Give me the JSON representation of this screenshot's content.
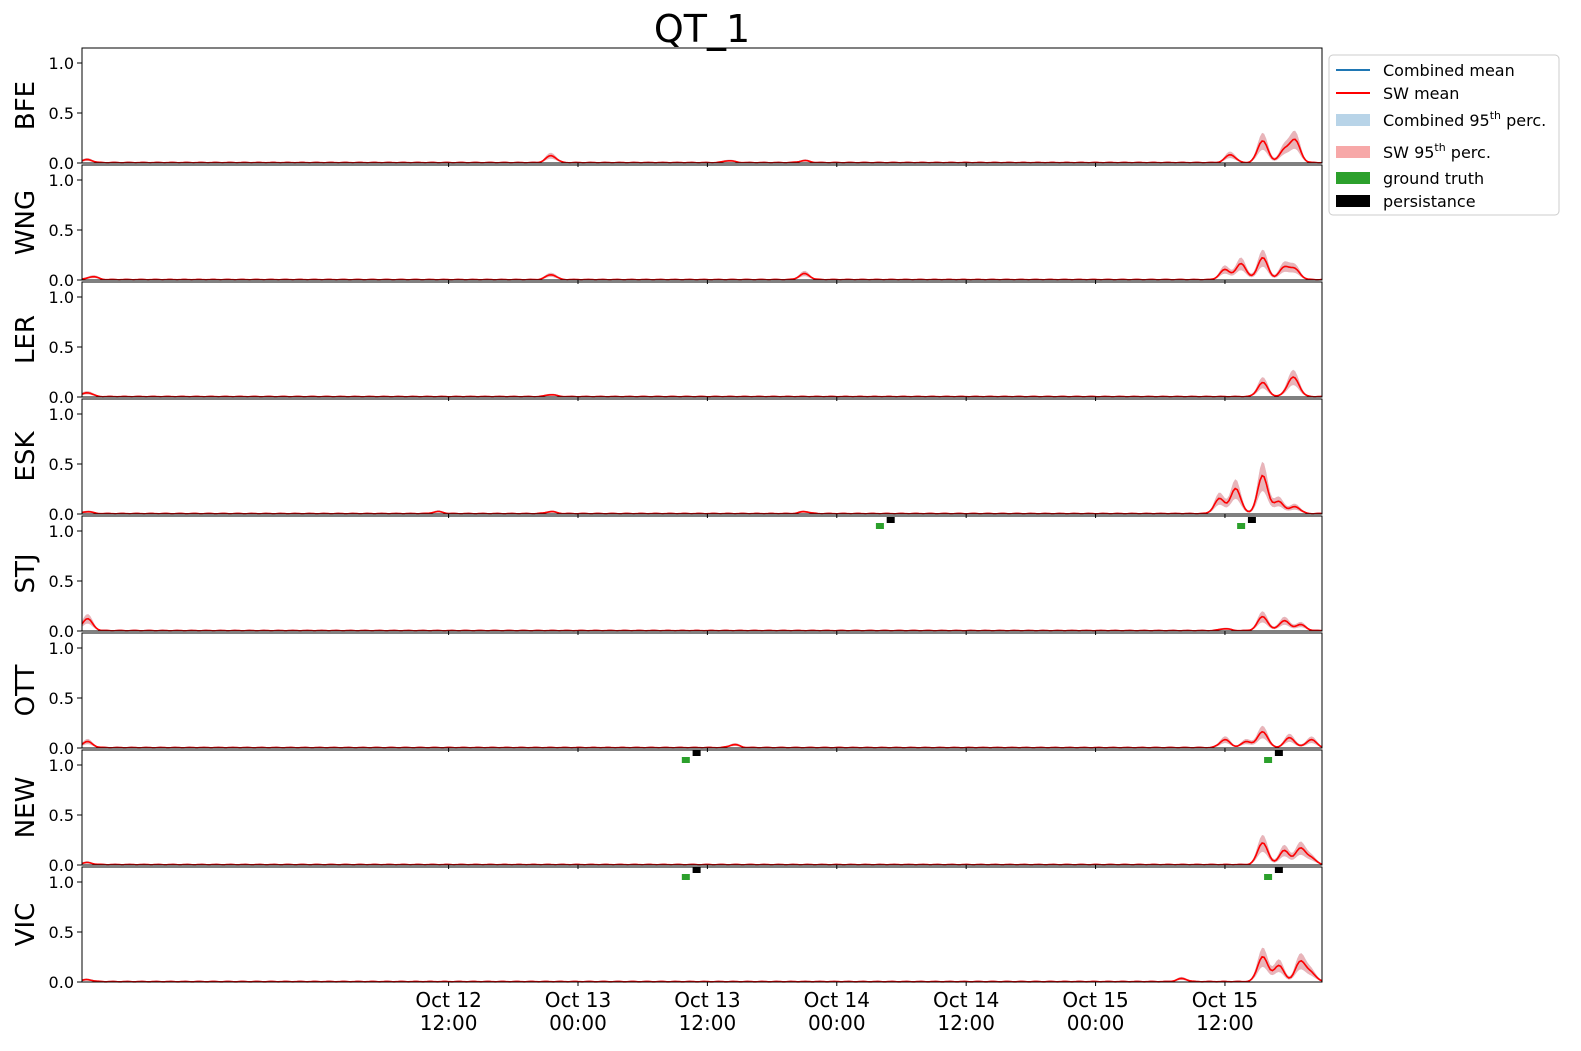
{
  "chart_data": {
    "type": "line",
    "title": "QT_1",
    "x_range": [
      "2021-10-11T02:00",
      "2021-10-15T21:00"
    ],
    "x_ticks": [
      {
        "t": "2021-10-12T12:00",
        "line1": "Oct 12",
        "line2": "12:00"
      },
      {
        "t": "2021-10-13T00:00",
        "line1": "Oct 13",
        "line2": "00:00"
      },
      {
        "t": "2021-10-13T12:00",
        "line1": "Oct 13",
        "line2": "12:00"
      },
      {
        "t": "2021-10-14T00:00",
        "line1": "Oct 14",
        "line2": "00:00"
      },
      {
        "t": "2021-10-14T12:00",
        "line1": "Oct 14",
        "line2": "12:00"
      },
      {
        "t": "2021-10-15T00:00",
        "line1": "Oct 15",
        "line2": "00:00"
      },
      {
        "t": "2021-10-15T12:00",
        "line1": "Oct 15",
        "line2": "12:00"
      }
    ],
    "ylim": [
      0,
      1.15
    ],
    "y_ticks": [
      {
        "v": 0.0,
        "label": "0.0"
      },
      {
        "v": 0.5,
        "label": "0.5"
      },
      {
        "v": 1.0,
        "label": "1.0"
      }
    ],
    "legend": {
      "position": "outside-top-right",
      "items": [
        {
          "label": "Combined mean",
          "kind": "line",
          "color": "#1f77b4"
        },
        {
          "label": "SW mean",
          "kind": "line",
          "color": "#ff0000"
        },
        {
          "label": "Combined 95",
          "sup": "th",
          "tail": " perc.",
          "kind": "patch",
          "color": "#b8d4e8"
        },
        {
          "label": "SW 95",
          "sup": "th",
          "tail": " perc.",
          "kind": "patch",
          "color": "#f7a8a8"
        },
        {
          "label": "ground truth",
          "kind": "patch",
          "color": "#2ca02c"
        },
        {
          "label": "persistance",
          "kind": "patch",
          "color": "#000000"
        }
      ]
    },
    "panels": [
      {
        "station": "BFE",
        "peaks": [
          [
            "2021-10-11T02:30",
            0.03
          ],
          [
            "2021-10-12T21:30",
            0.07
          ],
          [
            "2021-10-13T14:00",
            0.02
          ],
          [
            "2021-10-13T21:00",
            0.02
          ],
          [
            "2021-10-15T12:30",
            0.08
          ],
          [
            "2021-10-15T15:30",
            0.22
          ],
          [
            "2021-10-15T17:30",
            0.12
          ],
          [
            "2021-10-15T18:30",
            0.22
          ]
        ],
        "ground_truth": [],
        "persistance": []
      },
      {
        "station": "WNG",
        "peaks": [
          [
            "2021-10-11T03:00",
            0.03
          ],
          [
            "2021-10-12T21:30",
            0.05
          ],
          [
            "2021-10-13T21:00",
            0.06
          ],
          [
            "2021-10-15T12:00",
            0.1
          ],
          [
            "2021-10-15T13:30",
            0.16
          ],
          [
            "2021-10-15T15:30",
            0.22
          ],
          [
            "2021-10-15T17:30",
            0.12
          ],
          [
            "2021-10-15T18:30",
            0.1
          ]
        ],
        "ground_truth": [],
        "persistance": []
      },
      {
        "station": "LER",
        "peaks": [
          [
            "2021-10-11T02:30",
            0.04
          ],
          [
            "2021-10-12T21:30",
            0.02
          ],
          [
            "2021-10-15T15:30",
            0.14
          ],
          [
            "2021-10-15T18:00",
            0.08
          ],
          [
            "2021-10-15T18:30",
            0.14
          ]
        ],
        "ground_truth": [],
        "persistance": []
      },
      {
        "station": "ESK",
        "peaks": [
          [
            "2021-10-11T02:30",
            0.02
          ],
          [
            "2021-10-12T11:00",
            0.02
          ],
          [
            "2021-10-12T21:30",
            0.02
          ],
          [
            "2021-10-13T21:00",
            0.02
          ],
          [
            "2021-10-15T11:30",
            0.15
          ],
          [
            "2021-10-15T13:00",
            0.25
          ],
          [
            "2021-10-15T15:30",
            0.38
          ],
          [
            "2021-10-15T17:00",
            0.12
          ],
          [
            "2021-10-15T18:30",
            0.07
          ]
        ],
        "ground_truth": [],
        "persistance": []
      },
      {
        "station": "STJ",
        "peaks": [
          [
            "2021-10-11T02:30",
            0.12
          ],
          [
            "2021-10-15T12:00",
            0.02
          ],
          [
            "2021-10-15T15:30",
            0.14
          ],
          [
            "2021-10-15T17:30",
            0.1
          ],
          [
            "2021-10-15T19:00",
            0.06
          ]
        ],
        "ground_truth": [
          [
            "2021-10-14T04:00",
            1.05
          ],
          [
            "2021-10-15T13:30",
            1.05
          ]
        ],
        "persistance": [
          [
            "2021-10-14T05:00",
            1.11
          ],
          [
            "2021-10-15T14:30",
            1.11
          ]
        ]
      },
      {
        "station": "OTT",
        "peaks": [
          [
            "2021-10-11T02:30",
            0.06
          ],
          [
            "2021-10-13T14:30",
            0.03
          ],
          [
            "2021-10-15T12:00",
            0.08
          ],
          [
            "2021-10-15T14:00",
            0.06
          ],
          [
            "2021-10-15T15:30",
            0.16
          ],
          [
            "2021-10-15T18:00",
            0.1
          ],
          [
            "2021-10-15T20:00",
            0.08
          ]
        ],
        "ground_truth": [],
        "persistance": []
      },
      {
        "station": "NEW",
        "peaks": [
          [
            "2021-10-11T02:30",
            0.02
          ],
          [
            "2021-10-15T15:30",
            0.22
          ],
          [
            "2021-10-15T17:30",
            0.14
          ],
          [
            "2021-10-15T19:00",
            0.16
          ],
          [
            "2021-10-15T20:00",
            0.06
          ]
        ],
        "ground_truth": [
          [
            "2021-10-13T10:00",
            1.05
          ],
          [
            "2021-10-15T16:00",
            1.05
          ]
        ],
        "persistance": [
          [
            "2021-10-13T11:00",
            1.12
          ],
          [
            "2021-10-15T17:00",
            1.12
          ]
        ]
      },
      {
        "station": "VIC",
        "peaks": [
          [
            "2021-10-11T02:30",
            0.02
          ],
          [
            "2021-10-15T08:00",
            0.03
          ],
          [
            "2021-10-15T15:30",
            0.25
          ],
          [
            "2021-10-15T17:00",
            0.16
          ],
          [
            "2021-10-15T19:00",
            0.2
          ],
          [
            "2021-10-15T20:00",
            0.08
          ]
        ],
        "ground_truth": [
          [
            "2021-10-13T10:00",
            1.05
          ],
          [
            "2021-10-15T16:00",
            1.05
          ]
        ],
        "persistance": [
          [
            "2021-10-13T11:00",
            1.12
          ],
          [
            "2021-10-15T17:00",
            1.12
          ]
        ]
      }
    ]
  }
}
